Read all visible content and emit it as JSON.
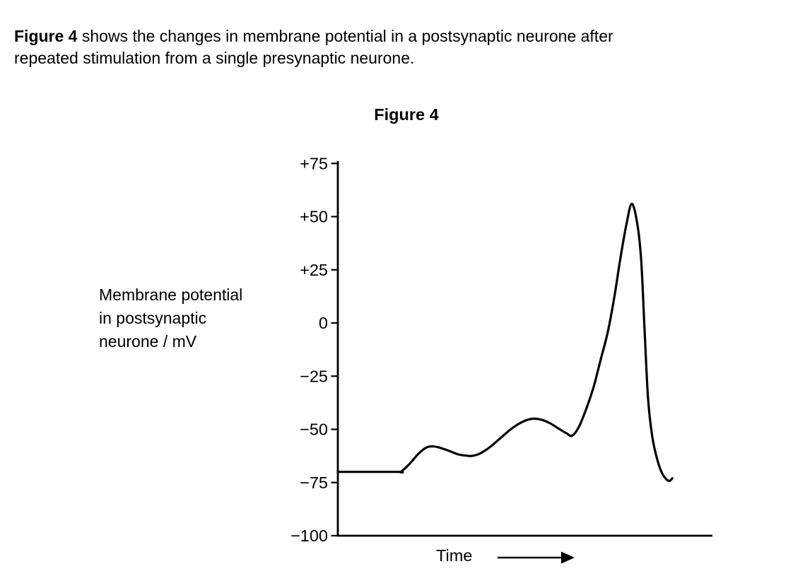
{
  "page": {
    "background": "#ffffff",
    "text_color": "#000000"
  },
  "intro": {
    "lead_bold": "Figure 4",
    "line1_rest": " shows the changes in membrane potential in a postsynaptic neurone after",
    "line2": "repeated stimulation from a single presynaptic neurone."
  },
  "figure_title": "Figure 4",
  "chart_data": {
    "type": "line",
    "title": "Figure 4",
    "xlabel": "Time",
    "x_axis": {
      "label": "Time",
      "scale": "no numeric scale; rightward arrow indicates increasing time",
      "range_fraction": [
        0,
        1
      ]
    },
    "y_axis": {
      "label_lines": [
        "Membrane potential",
        "in postsynaptic",
        "neurone / mV"
      ],
      "unit": "mV",
      "min": -100,
      "max": 75,
      "ticks": [
        {
          "value": 75,
          "label": "+75"
        },
        {
          "value": 50,
          "label": "+50"
        },
        {
          "value": 25,
          "label": "+25"
        },
        {
          "value": 0,
          "label": "0"
        },
        {
          "value": -25,
          "label": "−25"
        },
        {
          "value": -50,
          "label": "−50"
        },
        {
          "value": -75,
          "label": "−75"
        },
        {
          "value": -100,
          "label": "−100"
        }
      ]
    },
    "grid": false,
    "legend": "none",
    "line_color": "#000000",
    "series": [
      {
        "name": "Membrane potential of postsynaptic neurone",
        "x_unit": "fraction of time axis (no scale shown)",
        "points": [
          [
            0.0,
            -70
          ],
          [
            0.16,
            -70
          ],
          [
            0.168,
            -70
          ],
          [
            0.19,
            -66.5
          ],
          [
            0.215,
            -61.5
          ],
          [
            0.235,
            -58.7
          ],
          [
            0.249,
            -58
          ],
          [
            0.268,
            -58.4
          ],
          [
            0.295,
            -60
          ],
          [
            0.322,
            -61.8
          ],
          [
            0.345,
            -62.4
          ],
          [
            0.358,
            -62.5
          ],
          [
            0.378,
            -61.5
          ],
          [
            0.405,
            -58.5
          ],
          [
            0.435,
            -54
          ],
          [
            0.465,
            -49.5
          ],
          [
            0.495,
            -46.3
          ],
          [
            0.52,
            -45
          ],
          [
            0.542,
            -45.4
          ],
          [
            0.565,
            -47
          ],
          [
            0.59,
            -49.7
          ],
          [
            0.61,
            -51.8
          ],
          [
            0.625,
            -53
          ],
          [
            0.643,
            -49
          ],
          [
            0.664,
            -40
          ],
          [
            0.683,
            -30
          ],
          [
            0.702,
            -17
          ],
          [
            0.721,
            -4
          ],
          [
            0.738,
            12
          ],
          [
            0.753,
            29
          ],
          [
            0.77,
            46
          ],
          [
            0.785,
            56
          ],
          [
            0.8,
            46
          ],
          [
            0.81,
            29
          ],
          [
            0.819,
            -4
          ],
          [
            0.828,
            -35
          ],
          [
            0.839,
            -53
          ],
          [
            0.851,
            -63
          ],
          [
            0.864,
            -70
          ],
          [
            0.877,
            -73.5
          ],
          [
            0.886,
            -74.2
          ],
          [
            0.893,
            -73
          ]
        ]
      }
    ],
    "features_read_from_chart": {
      "resting_potential_mV": -70,
      "epsp1_peak_mV": -58,
      "epsp1_trough_mV": -62.5,
      "epsp2_peak_mV": -45,
      "epsp2_trough_mV": -53,
      "action_potential_peak_mV": 56,
      "after_hyperpolarization_mV": -74
    }
  }
}
